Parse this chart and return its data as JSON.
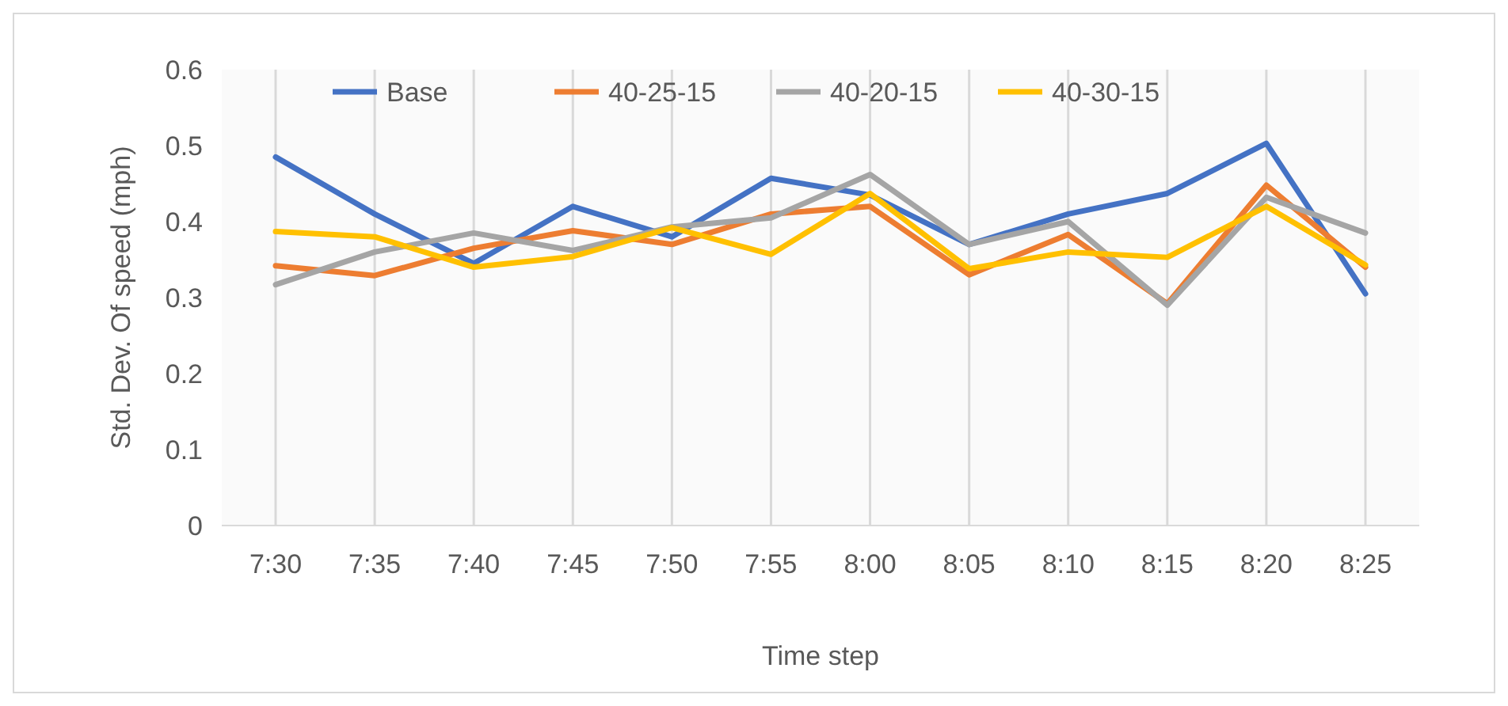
{
  "chart_data": {
    "type": "line",
    "xlabel": "Time step",
    "ylabel": "Std. Dev. Of speed (mph)",
    "categories": [
      "7:30",
      "7:35",
      "7:40",
      "7:45",
      "7:50",
      "7:55",
      "8:00",
      "8:05",
      "8:10",
      "8:15",
      "8:20",
      "8:25"
    ],
    "ylim": [
      0,
      0.6
    ],
    "yticks": [
      0,
      0.1,
      0.2,
      0.3,
      0.4,
      0.5,
      0.6
    ],
    "grid": "x",
    "legend": "top",
    "marker": "none",
    "line_style": "solid",
    "series": [
      {
        "name": "Base",
        "color": "#4472c4",
        "values": [
          0.485,
          0.41,
          0.345,
          0.42,
          0.38,
          0.457,
          0.435,
          0.37,
          0.41,
          0.437,
          0.503,
          0.305
        ]
      },
      {
        "name": "40-25-15",
        "color": "#ed7d31",
        "values": [
          0.342,
          0.329,
          0.365,
          0.388,
          0.37,
          0.41,
          0.42,
          0.33,
          0.383,
          0.292,
          0.448,
          0.34
        ]
      },
      {
        "name": "40-20-15",
        "color": "#a5a5a5",
        "values": [
          0.317,
          0.36,
          0.385,
          0.362,
          0.393,
          0.405,
          0.462,
          0.37,
          0.4,
          0.29,
          0.432,
          0.385
        ]
      },
      {
        "name": "40-30-15",
        "color": "#ffc000",
        "values": [
          0.387,
          0.38,
          0.34,
          0.354,
          0.392,
          0.357,
          0.437,
          0.338,
          0.36,
          0.353,
          0.42,
          0.343
        ]
      }
    ]
  }
}
